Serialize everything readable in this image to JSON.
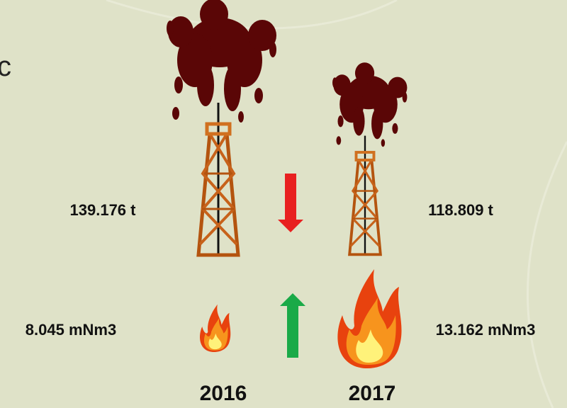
{
  "title_fragment": "c",
  "oil": [
    "139.176 t",
    "118.809 t"
  ],
  "gas": [
    "8.045 mNm3",
    "13.162 mNm3"
  ],
  "years": [
    "2016",
    "2017"
  ]
}
